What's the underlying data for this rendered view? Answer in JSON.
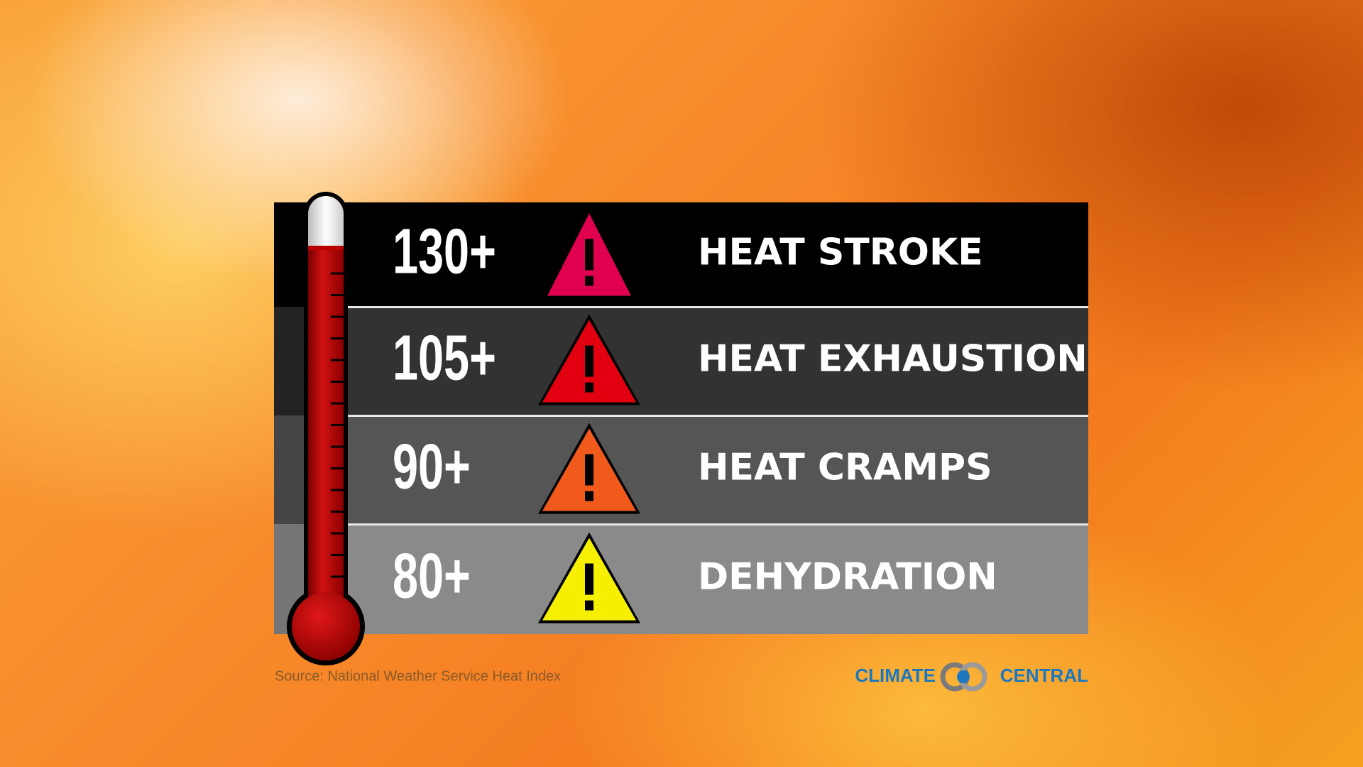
{
  "rows": [
    {
      "threshold": "130+",
      "label": "HEAT STROKE",
      "color": "#e0004f"
    },
    {
      "threshold": "105+",
      "label": "HEAT EXHAUSTION",
      "color": "#e20010"
    },
    {
      "threshold": "90+",
      "label": "HEAT CRAMPS",
      "color": "#f25a1c"
    },
    {
      "threshold": "80+",
      "label": "DEHYDRATION",
      "color": "#f6f000"
    }
  ],
  "footer": {
    "source": "Source: National Weather Service Heat Index",
    "logo_left": "CLIMATE",
    "logo_right": "CENTRAL"
  }
}
